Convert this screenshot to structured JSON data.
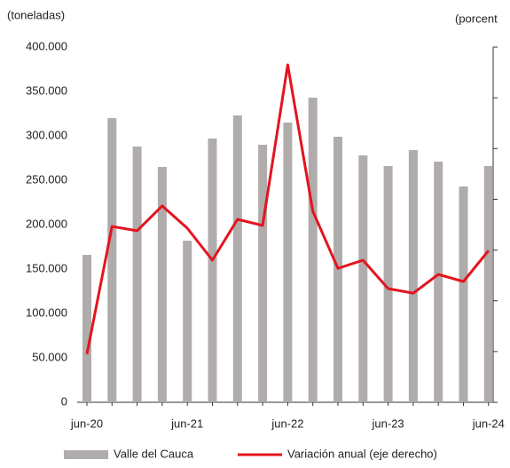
{
  "chart_data": {
    "type": "bar",
    "y_label": "(toneladas)",
    "y2_label": "(porcent",
    "categories": [
      "jun-20",
      null,
      null,
      null,
      "jun-21",
      null,
      null,
      null,
      "jun-22",
      null,
      null,
      null,
      "jun-23",
      null,
      null,
      null,
      "jun-24"
    ],
    "series": [
      {
        "name": "Valle del Cauca",
        "type": "bar",
        "color": "#b0acab",
        "values": [
          166000,
          320000,
          288000,
          265000,
          182000,
          297000,
          323000,
          290000,
          315000,
          343000,
          299000,
          278000,
          266000,
          284000,
          271000,
          243000,
          266000
        ]
      },
      {
        "name": "Variación anual (eje derecho)",
        "type": "line",
        "axis": "y2",
        "color": "#e3141f",
        "values": [
          -41,
          9.3,
          7.6,
          17.4,
          8.6,
          -4,
          12.1,
          9.7,
          73,
          15.3,
          -7.2,
          -4,
          -15.2,
          -17,
          -9.6,
          -12.4,
          -0.2
        ]
      }
    ],
    "ylim": [
      0,
      400000
    ],
    "yticks": [
      {
        "value": 0,
        "label": "0"
      },
      {
        "value": 50000,
        "label": "50.000"
      },
      {
        "value": 100000,
        "label": "100.000"
      },
      {
        "value": 150000,
        "label": "150.000"
      },
      {
        "value": 200000,
        "label": "200.000"
      },
      {
        "value": 250000,
        "label": "250.000"
      },
      {
        "value": 300000,
        "label": "300.000"
      },
      {
        "value": 350000,
        "label": "350.000"
      },
      {
        "value": 400000,
        "label": "400.000"
      }
    ],
    "y2lim": [
      -60,
      80
    ],
    "y2ticks": [
      -60,
      -40,
      -20,
      0,
      20,
      40,
      60,
      80
    ]
  }
}
